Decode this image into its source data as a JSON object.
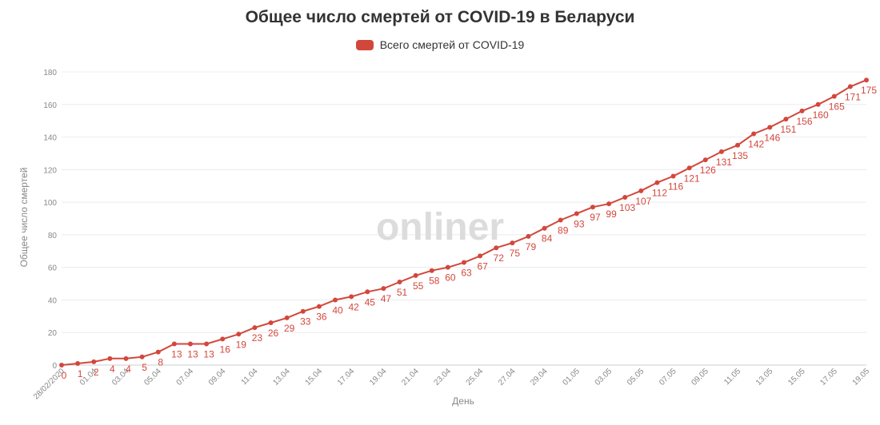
{
  "watermark": "onliner",
  "colors": {
    "series": "#d2473c",
    "grid": "#ececec",
    "axis": "#cccccc"
  },
  "chart_data": {
    "type": "line",
    "title": "Общее число смертей от COVID-19 в Беларуси",
    "xlabel": "День",
    "ylabel": "Общее число смертей",
    "ylim": [
      0,
      180
    ],
    "yticks": [
      0,
      20,
      40,
      60,
      80,
      100,
      120,
      140,
      160,
      180
    ],
    "grid": true,
    "legend_position": "top",
    "x_ticks": [
      "28/02/2020",
      "01.04",
      "03.04",
      "05.04",
      "07.04",
      "09.04",
      "11.04",
      "13.04",
      "15.04",
      "17.04",
      "19.04",
      "21.04",
      "23.04",
      "25.04",
      "27.04",
      "29.04",
      "01.05",
      "03.05",
      "05.05",
      "07.05",
      "09.05",
      "11.05",
      "13.05",
      "15.05",
      "17.05",
      "19.05"
    ],
    "series": [
      {
        "name": "Всего смертей от COVID-19",
        "color": "#d2473c",
        "values": [
          0,
          1,
          2,
          4,
          4,
          5,
          8,
          13,
          13,
          13,
          16,
          19,
          23,
          26,
          29,
          33,
          36,
          40,
          42,
          45,
          47,
          51,
          55,
          58,
          60,
          63,
          67,
          72,
          75,
          79,
          84,
          89,
          93,
          97,
          99,
          103,
          107,
          112,
          116,
          121,
          126,
          131,
          135,
          142,
          146,
          151,
          156,
          160,
          165,
          171,
          175
        ],
        "labels": [
          "0",
          "1",
          "2",
          "4",
          "4",
          "5",
          "8",
          "13",
          "13",
          "13",
          "16",
          "19",
          "23",
          "26",
          "29",
          "33",
          "36",
          "40",
          "42",
          "45",
          "47",
          "51",
          "55",
          "58",
          "60",
          "63",
          "67",
          "72",
          "75",
          "79",
          "84",
          "89",
          "93",
          "97",
          "99",
          "103",
          "107",
          "112",
          "116",
          "121",
          "126",
          "131",
          "135",
          "142",
          "146",
          "151",
          "156",
          "160",
          "165",
          "171",
          "175"
        ]
      }
    ]
  }
}
